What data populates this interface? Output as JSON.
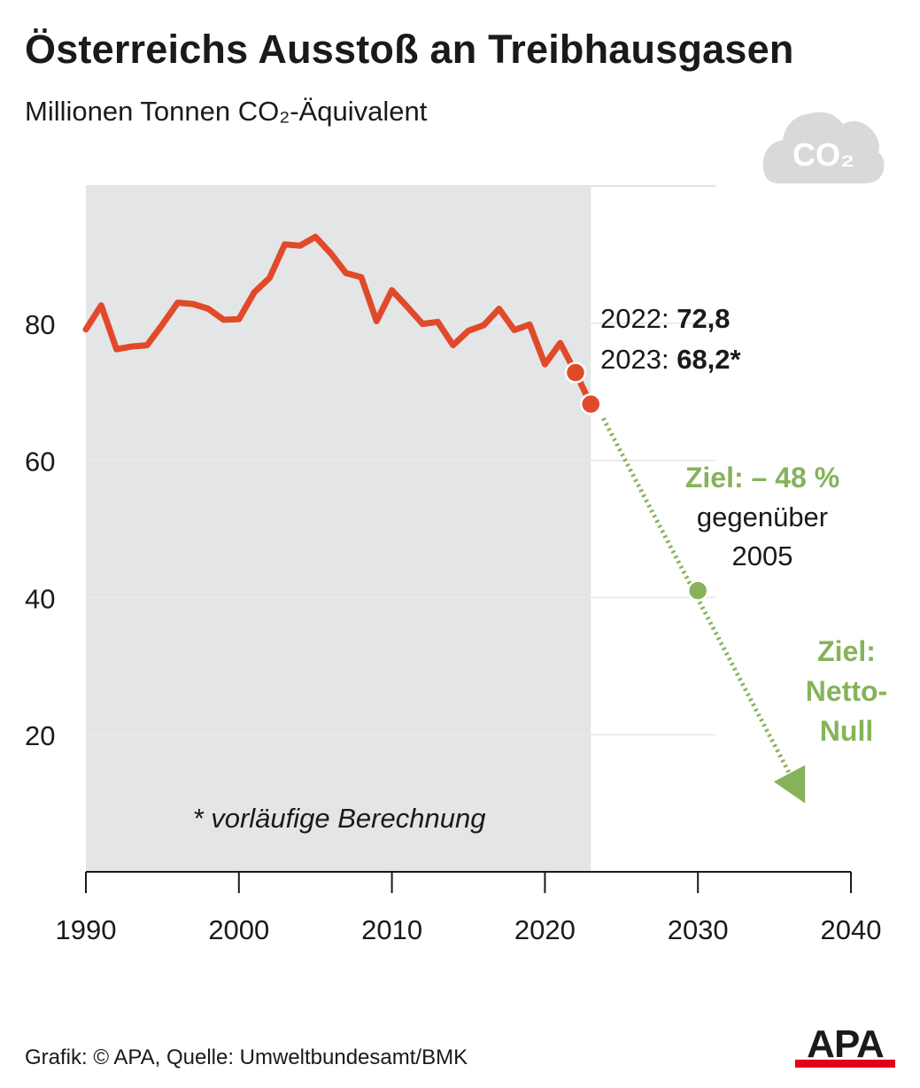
{
  "header": {
    "title": "Österreichs Ausstoß an Treibhausgasen",
    "subtitle": "Millionen Tonnen CO₂-Äquivalent"
  },
  "icon": {
    "name": "co2-cloud-icon",
    "label": "CO₂",
    "color": "#d9d9d9"
  },
  "chart_data": {
    "type": "line",
    "title": "Österreichs Ausstoß an Treibhausgasen",
    "subtitle": "Millionen Tonnen CO₂-Äquivalent",
    "xlim": [
      1990,
      2040
    ],
    "ylim": [
      0,
      100
    ],
    "x_ticks": [
      1990,
      2000,
      2010,
      2020,
      2030,
      2040
    ],
    "y_ticks": [
      20,
      40,
      60,
      80
    ],
    "grid": true,
    "series": [
      {
        "type": "area-line",
        "color": "#e04a2a",
        "x": [
          1990,
          1991,
          1992,
          1993,
          1994,
          1995,
          1996,
          1997,
          1998,
          1999,
          2000,
          2001,
          2002,
          2003,
          2004,
          2005,
          2006,
          2007,
          2008,
          2009,
          2010,
          2011,
          2012,
          2013,
          2014,
          2015,
          2016,
          2017,
          2018,
          2019,
          2020,
          2021,
          2022,
          2023
        ],
        "y": [
          79.1,
          82.6,
          76.2,
          76.6,
          76.8,
          79.8,
          83.0,
          82.8,
          82.1,
          80.5,
          80.6,
          84.5,
          86.6,
          91.5,
          91.3,
          92.6,
          90.2,
          87.3,
          86.7,
          80.3,
          84.8,
          82.4,
          79.9,
          80.2,
          76.8,
          78.9,
          79.7,
          82.1,
          79.0,
          79.8,
          74.0,
          77.1,
          72.8,
          68.2
        ],
        "highlight_points": [
          {
            "x": 2022,
            "y": 72.8
          },
          {
            "x": 2023,
            "y": 68.2
          }
        ]
      },
      {
        "type": "target-arrow",
        "color": "#86b35a",
        "dotted": true,
        "x": [
          2023,
          2030,
          2037
        ],
        "y": [
          68.2,
          41.0,
          10.0
        ],
        "target_point": {
          "x": 2030,
          "y": 41.0
        }
      }
    ],
    "shaded_region": {
      "from": 1990,
      "to": 2023,
      "color": "#e4e5e6"
    },
    "annotations": {
      "y2022_prefix": "2022: ",
      "y2022_value": "72,8",
      "y2023_prefix": "2023: ",
      "y2023_value": "68,2*",
      "target1_title": "Ziel: – 48 %",
      "target1_line2": "gegenüber",
      "target1_line3": "2005",
      "target2_line1": "Ziel:",
      "target2_line2": "Netto-",
      "target2_line3": "Null",
      "footnote": "* vorläufige Berechnung"
    }
  },
  "footer": {
    "source": "Grafik: © APA, Quelle: Umweltbundesamt/BMK",
    "logo": "APA",
    "logo_color": "#e2001a"
  }
}
